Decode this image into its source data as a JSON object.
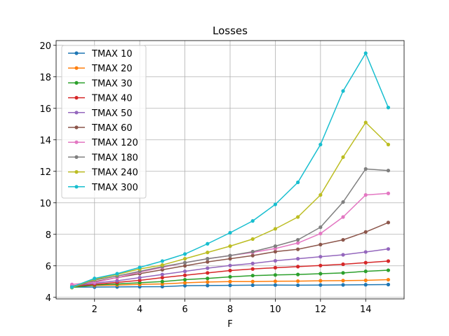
{
  "chart_data": {
    "type": "line",
    "title": "Losses",
    "xlabel": "F",
    "ylabel": "",
    "xlim": [
      0.3,
      15.7
    ],
    "ylim": [
      3.9,
      20.3
    ],
    "xticks": [
      2,
      4,
      6,
      8,
      10,
      12,
      14
    ],
    "yticks": [
      4,
      6,
      8,
      10,
      12,
      14,
      16,
      18,
      20
    ],
    "grid": true,
    "legend_position": "top-left",
    "x": [
      1,
      2,
      3,
      4,
      5,
      6,
      7,
      8,
      9,
      10,
      11,
      12,
      13,
      14,
      15
    ],
    "series": [
      {
        "name": "TMAX 10",
        "color": "#1f77b4",
        "values": [
          4.65,
          4.65,
          4.66,
          4.67,
          4.68,
          4.74,
          4.75,
          4.76,
          4.77,
          4.78,
          4.77,
          4.78,
          4.79,
          4.8,
          4.81
        ]
      },
      {
        "name": "TMAX 20",
        "color": "#ff7f0e",
        "values": [
          4.68,
          4.75,
          4.78,
          4.82,
          4.85,
          4.92,
          4.97,
          5.0,
          5.0,
          5.02,
          5.03,
          5.05,
          5.06,
          5.08,
          5.12
        ]
      },
      {
        "name": "TMAX 30",
        "color": "#2ca02c",
        "values": [
          4.62,
          4.78,
          4.85,
          4.93,
          5.0,
          5.12,
          5.2,
          5.3,
          5.38,
          5.42,
          5.45,
          5.5,
          5.55,
          5.65,
          5.72
        ]
      },
      {
        "name": "TMAX 40",
        "color": "#d62728",
        "values": [
          4.7,
          4.82,
          4.95,
          5.08,
          5.25,
          5.4,
          5.55,
          5.7,
          5.8,
          5.88,
          5.95,
          6.02,
          6.1,
          6.2,
          6.3
        ]
      },
      {
        "name": "TMAX 50",
        "color": "#9467bd",
        "values": [
          4.72,
          4.9,
          5.05,
          5.25,
          5.45,
          5.65,
          5.85,
          6.02,
          6.15,
          6.32,
          6.45,
          6.58,
          6.7,
          6.88,
          7.07
        ]
      },
      {
        "name": "TMAX 60",
        "color": "#8c564b",
        "values": [
          4.7,
          5.0,
          5.25,
          5.5,
          5.75,
          6.0,
          6.25,
          6.45,
          6.65,
          6.9,
          7.05,
          7.35,
          7.65,
          8.15,
          8.75
        ]
      },
      {
        "name": "TMAX 120",
        "color": "#e377c2",
        "values": [
          4.82,
          4.95,
          5.25,
          5.6,
          5.9,
          6.2,
          6.45,
          6.65,
          6.85,
          7.1,
          7.45,
          8.05,
          9.1,
          10.5,
          10.6
        ]
      },
      {
        "name": "TMAX 180",
        "color": "#7f7f7f",
        "values": [
          4.62,
          5.1,
          5.35,
          5.65,
          5.95,
          6.2,
          6.45,
          6.65,
          6.9,
          7.25,
          7.65,
          8.45,
          10.05,
          12.15,
          12.05
        ]
      },
      {
        "name": "TMAX 240",
        "color": "#bcbd22",
        "values": [
          4.62,
          5.15,
          5.45,
          5.8,
          6.05,
          6.45,
          6.85,
          7.25,
          7.7,
          8.35,
          9.1,
          10.5,
          12.9,
          15.1,
          13.7
        ]
      },
      {
        "name": "TMAX 300",
        "color": "#17becf",
        "values": [
          4.65,
          5.2,
          5.5,
          5.9,
          6.3,
          6.75,
          7.4,
          8.1,
          8.85,
          9.9,
          11.3,
          13.7,
          17.1,
          19.5,
          16.05
        ]
      }
    ]
  }
}
